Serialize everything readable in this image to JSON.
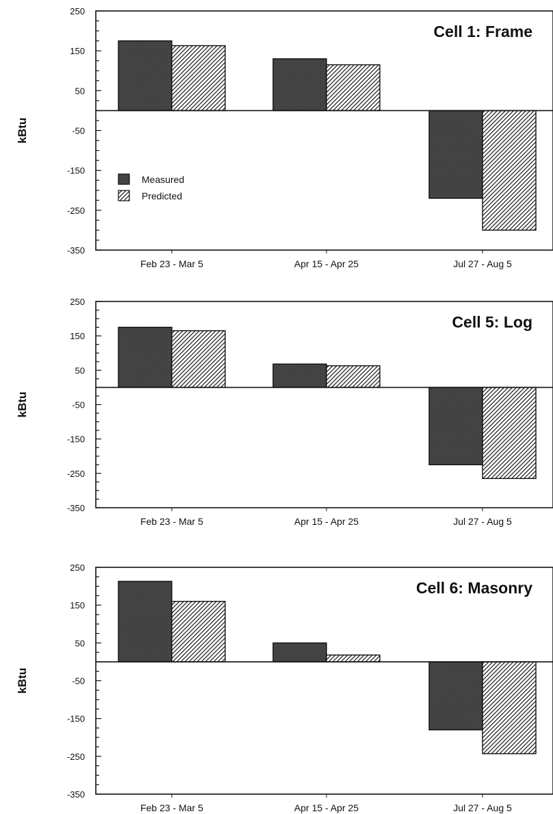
{
  "legend": {
    "measured": "Measured",
    "predicted": "Predicted"
  },
  "colors": {
    "measured_fill": "#3a3a3a",
    "predicted_stroke": "#222222",
    "axis": "#111111"
  },
  "chart_data": [
    {
      "type": "bar",
      "title": "Cell 1: Frame",
      "ylabel": "kBtu",
      "categories": [
        "Feb 23 - Mar 5",
        "Apr 15 - Apr 25",
        "Jul 27 - Aug 5"
      ],
      "yticks": [
        "250",
        "150",
        "50",
        "-50",
        "-150",
        "-250",
        "-350"
      ],
      "ylim": [
        -350,
        250
      ],
      "legend_position": "left",
      "series": [
        {
          "name": "Measured",
          "values": [
            175,
            130,
            -220
          ]
        },
        {
          "name": "Predicted",
          "values": [
            163,
            115,
            -300
          ]
        }
      ]
    },
    {
      "type": "bar",
      "title": "Cell 5: Log",
      "ylabel": "kBtu",
      "categories": [
        "Feb 23 - Mar 5",
        "Apr 15 - Apr 25",
        "Jul 27 - Aug 5"
      ],
      "yticks": [
        "250",
        "150",
        "50",
        "-50",
        "-150",
        "-250",
        "-350"
      ],
      "ylim": [
        -350,
        250
      ],
      "series": [
        {
          "name": "Measured",
          "values": [
            175,
            68,
            -225
          ]
        },
        {
          "name": "Predicted",
          "values": [
            165,
            63,
            -265
          ]
        }
      ]
    },
    {
      "type": "bar",
      "title": "Cell 6: Masonry",
      "ylabel": "kBtu",
      "categories": [
        "Feb 23 - Mar 5",
        "Apr 15 - Apr 25",
        "Jul 27 - Aug 5"
      ],
      "yticks": [
        "250",
        "150",
        "50",
        "-50",
        "-150",
        "-250",
        "-350"
      ],
      "ylim": [
        -350,
        250
      ],
      "series": [
        {
          "name": "Measured",
          "values": [
            213,
            50,
            -180
          ]
        },
        {
          "name": "Predicted",
          "values": [
            160,
            18,
            -243
          ]
        }
      ]
    }
  ]
}
